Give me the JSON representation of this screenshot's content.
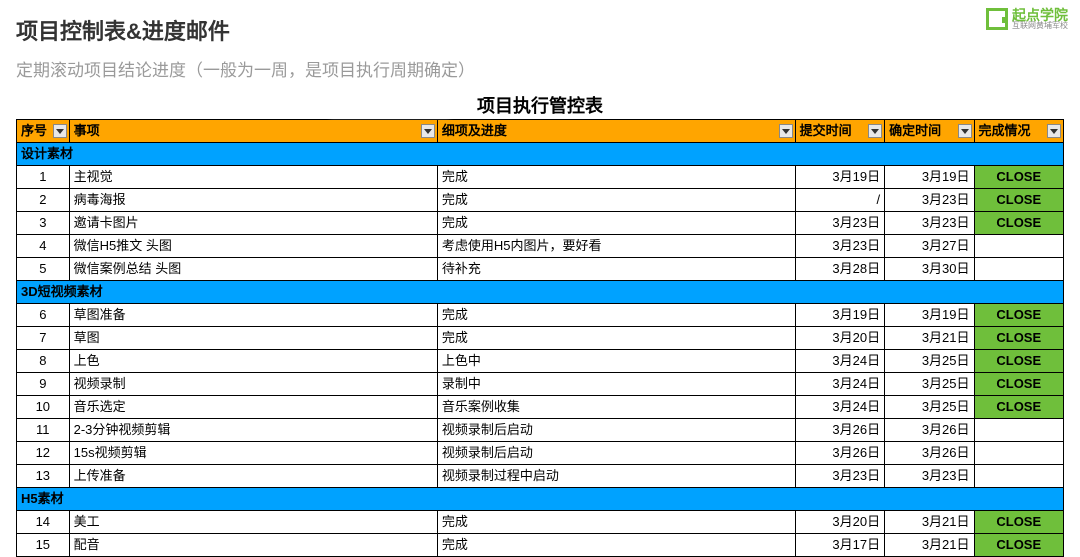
{
  "logo": {
    "name": "起点学院",
    "sub": "互联网黄埔军校"
  },
  "heading": "项目控制表&进度邮件",
  "subheading": "定期滚动项目结论进度（一般为一周，是项目执行周期确定）",
  "sheet_title": "项目执行管控表",
  "columns": {
    "num": "序号",
    "item": "事项",
    "detail": "细项及进度",
    "submit": "提交时间",
    "confirm": "确定时间",
    "status": "完成情况"
  },
  "status_labels": {
    "close": "CLOSE"
  },
  "colors": {
    "header_bg": "#ffa500",
    "section_bg": "#00a2ff",
    "close_bg": "#6fbf3b",
    "border": "#000000",
    "subtitle": "#9a9a9a"
  },
  "sections": [
    {
      "title": "设计素材",
      "rows": [
        {
          "n": "1",
          "item": "主视觉",
          "detail": "完成",
          "submit": "3月19日",
          "confirm": "3月19日",
          "status": "CLOSE"
        },
        {
          "n": "2",
          "item": "病毒海报",
          "detail": "完成",
          "submit": "/",
          "confirm": "3月23日",
          "status": "CLOSE"
        },
        {
          "n": "3",
          "item": "邀请卡图片",
          "detail": "完成",
          "submit": "3月23日",
          "confirm": "3月23日",
          "status": "CLOSE"
        },
        {
          "n": "4",
          "item": "微信H5推文 头图",
          "detail": "考虑使用H5内图片，要好看",
          "submit": "3月23日",
          "confirm": "3月27日",
          "status": ""
        },
        {
          "n": "5",
          "item": "微信案例总结 头图",
          "detail": "待补充",
          "submit": "3月28日",
          "confirm": "3月30日",
          "status": ""
        }
      ]
    },
    {
      "title": "3D短视频素材",
      "rows": [
        {
          "n": "6",
          "item": "草图准备",
          "detail": "完成",
          "submit": "3月19日",
          "confirm": "3月19日",
          "status": "CLOSE"
        },
        {
          "n": "7",
          "item": "草图",
          "detail": "完成",
          "submit": "3月20日",
          "confirm": "3月21日",
          "status": "CLOSE"
        },
        {
          "n": "8",
          "item": "上色",
          "detail": "上色中",
          "submit": "3月24日",
          "confirm": "3月25日",
          "status": "CLOSE"
        },
        {
          "n": "9",
          "item": "视频录制",
          "detail": "录制中",
          "submit": "3月24日",
          "confirm": "3月25日",
          "status": "CLOSE"
        },
        {
          "n": "10",
          "item": "音乐选定",
          "detail": "音乐案例收集",
          "submit": "3月24日",
          "confirm": "3月25日",
          "status": "CLOSE"
        },
        {
          "n": "11",
          "item": "2-3分钟视频剪辑",
          "detail": "视频录制后启动",
          "submit": "3月26日",
          "confirm": "3月26日",
          "status": ""
        },
        {
          "n": "12",
          "item": "15s视频剪辑",
          "detail": "视频录制后启动",
          "submit": "3月26日",
          "confirm": "3月26日",
          "status": ""
        },
        {
          "n": "13",
          "item": "上传准备",
          "detail": "视频录制过程中启动",
          "submit": "3月23日",
          "confirm": "3月23日",
          "status": ""
        }
      ]
    },
    {
      "title": "H5素材",
      "rows": [
        {
          "n": "14",
          "item": "美工",
          "detail": "完成",
          "submit": "3月20日",
          "confirm": "3月21日",
          "status": "CLOSE"
        },
        {
          "n": "15",
          "item": "配音",
          "detail": "完成",
          "submit": "3月17日",
          "confirm": "3月21日",
          "status": "CLOSE"
        }
      ]
    }
  ]
}
